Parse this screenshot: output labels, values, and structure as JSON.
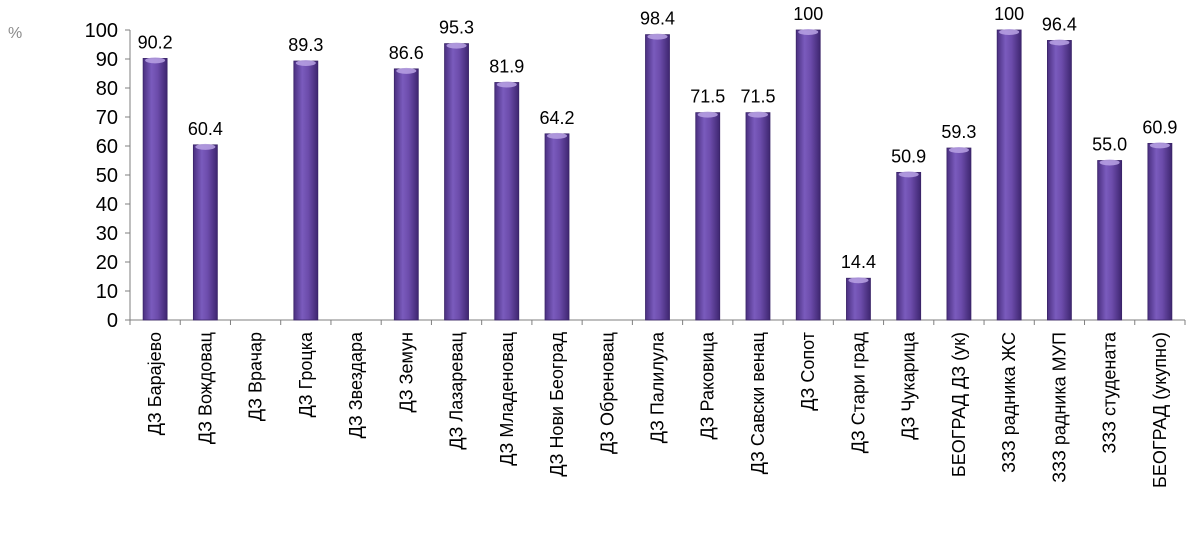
{
  "chart_data": {
    "type": "bar",
    "ylabel": "%",
    "ylim": [
      0,
      100
    ],
    "yticks": [
      "0",
      "10",
      "20",
      "30",
      "40",
      "50",
      "60",
      "70",
      "80",
      "90",
      "100"
    ],
    "grid": false,
    "bar_color": "#6a48a8",
    "categories": [
      "ДЗ Барајево",
      "ДЗ Вождовац",
      "ДЗ Врачар",
      "ДЗ Гроцка",
      "ДЗ Звездара",
      "ДЗ Земун",
      "ДЗ Лазаревац",
      "ДЗ Младеновац",
      "ДЗ Нови Београд",
      "ДЗ Обреновац",
      "ДЗ Палилула",
      "ДЗ Раковица",
      "ДЗ Савски венац",
      "ДЗ Сопот",
      "ДЗ Стари град",
      "ДЗ Чукарица",
      "БЕОГРАД ДЗ (ук)",
      "ЗЗЗ радника ЖС",
      "ЗЗЗ радника МУП",
      "ЗЗЗ студената",
      "БЕОГРАД (укупно)"
    ],
    "values": [
      90.2,
      60.4,
      null,
      89.3,
      null,
      86.6,
      95.3,
      81.9,
      64.2,
      null,
      98.4,
      71.5,
      71.5,
      100,
      14.4,
      50.9,
      59.3,
      100,
      96.4,
      55.0,
      60.9
    ],
    "data_labels": [
      "90.2",
      "60.4",
      "",
      "89.3",
      "",
      "86.6",
      "95.3",
      "81.9",
      "64.2",
      "",
      "98.4",
      "71.5",
      "71.5",
      "100",
      "14.4",
      "50.9",
      "59.3",
      "100",
      "96.4",
      "55.0",
      "60.9"
    ]
  }
}
